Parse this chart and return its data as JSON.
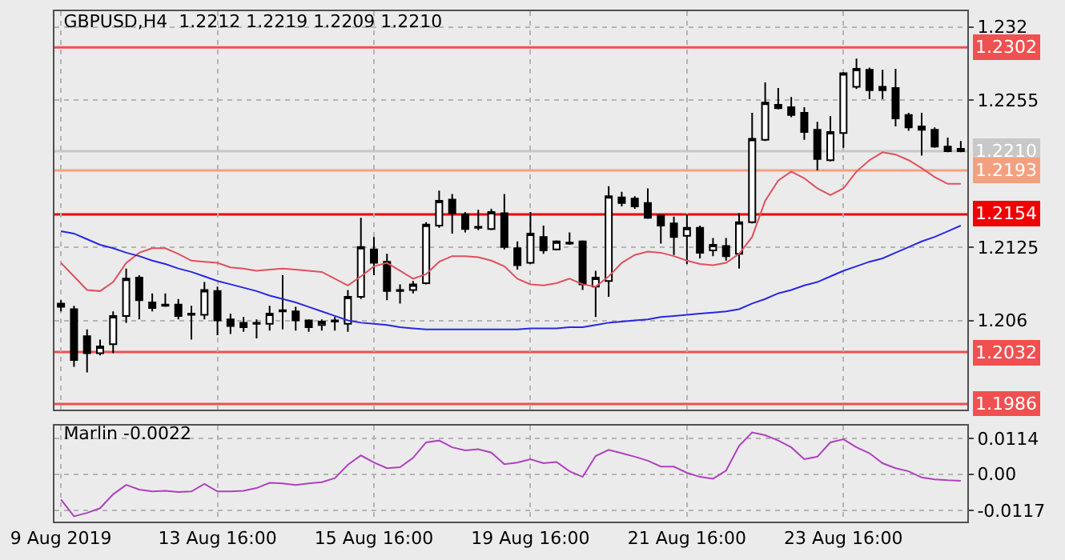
{
  "chart_data": [
    {
      "type": "candlestick",
      "title": "GBPUSD,H4  1.2212 1.2219 1.2209 1.2210",
      "categories": [
        null,
        null,
        null,
        null,
        null,
        null,
        null,
        null,
        null,
        null,
        null,
        null,
        null,
        null,
        null,
        null,
        null,
        null,
        null,
        null,
        null,
        null,
        null,
        null,
        null,
        null,
        null,
        null,
        null,
        null,
        null,
        null,
        null,
        null,
        null,
        null,
        null,
        null,
        null,
        null,
        null,
        null,
        null,
        null,
        null,
        null,
        null,
        null,
        null,
        null,
        null,
        null,
        null,
        null,
        null,
        null,
        null,
        null,
        null,
        null,
        null,
        null,
        null,
        null,
        null,
        null,
        null,
        null,
        null,
        null
      ],
      "ohlc": [
        [
          1.2075,
          1.2078,
          1.2068,
          1.2072
        ],
        [
          1.207,
          1.2073,
          1.2019,
          1.2025
        ],
        [
          1.2046,
          1.2052,
          1.2014,
          1.2031
        ],
        [
          1.2031,
          1.2043,
          1.2029,
          1.2037
        ],
        [
          1.2039,
          1.2068,
          1.2031,
          1.2064
        ],
        [
          1.2064,
          1.2106,
          1.2058,
          1.2097
        ],
        [
          1.2098,
          1.21,
          1.2061,
          1.2078
        ],
        [
          1.2076,
          1.2084,
          1.2068,
          1.2071
        ],
        [
          1.2074,
          1.2084,
          1.2072,
          1.2073
        ],
        [
          1.2074,
          1.2079,
          1.2061,
          1.2064
        ],
        [
          1.2065,
          1.2073,
          1.2043,
          1.2066
        ],
        [
          1.2065,
          1.2094,
          1.2061,
          1.2087
        ],
        [
          1.2086,
          1.209,
          1.2047,
          1.206
        ],
        [
          1.2061,
          1.2066,
          1.2048,
          1.2055
        ],
        [
          1.2058,
          1.2063,
          1.205,
          1.2054
        ],
        [
          1.2057,
          1.2061,
          1.2044,
          1.2058
        ],
        [
          1.2057,
          1.2073,
          1.2051,
          1.2066
        ],
        [
          1.2068,
          1.21,
          1.2052,
          1.2069
        ],
        [
          1.2068,
          1.2072,
          1.2051,
          1.206
        ],
        [
          1.206,
          1.2061,
          1.205,
          1.2054
        ],
        [
          1.2056,
          1.2061,
          1.2051,
          1.2059
        ],
        [
          1.2059,
          1.2063,
          1.2051,
          1.206
        ],
        [
          1.2057,
          1.2087,
          1.205,
          1.2081
        ],
        [
          1.2081,
          1.2151,
          1.2079,
          1.2125
        ],
        [
          1.2123,
          1.2134,
          1.21,
          1.2111
        ],
        [
          1.2112,
          1.2119,
          1.2078,
          1.2086
        ],
        [
          1.2086,
          1.2092,
          1.2075,
          1.2087
        ],
        [
          1.2087,
          1.2095,
          1.2084,
          1.2092
        ],
        [
          1.2093,
          1.2147,
          1.2092,
          1.2145
        ],
        [
          1.2144,
          1.2175,
          1.2142,
          1.2166
        ],
        [
          1.2167,
          1.2172,
          1.2137,
          1.2155
        ],
        [
          1.2154,
          1.2156,
          1.2138,
          1.2141
        ],
        [
          1.2142,
          1.2158,
          1.214,
          1.2143
        ],
        [
          1.2141,
          1.2159,
          1.214,
          1.2156
        ],
        [
          1.2155,
          1.2172,
          1.2123,
          1.2125
        ],
        [
          1.2124,
          1.213,
          1.2105,
          1.2109
        ],
        [
          1.2111,
          1.2156,
          1.211,
          1.2137
        ],
        [
          1.2134,
          1.2144,
          1.2119,
          1.2122
        ],
        [
          1.2123,
          1.2131,
          1.2122,
          1.213
        ],
        [
          1.2128,
          1.2138,
          1.2127,
          1.2129
        ],
        [
          1.213,
          1.2131,
          1.2087,
          1.2092
        ],
        [
          1.209,
          1.2104,
          1.2063,
          1.2098
        ],
        [
          1.2095,
          1.2179,
          1.2081,
          1.217
        ],
        [
          1.2169,
          1.2174,
          1.2161,
          1.2164
        ],
        [
          1.2168,
          1.217,
          1.2159,
          1.2161
        ],
        [
          1.2164,
          1.2177,
          1.215,
          1.2151
        ],
        [
          1.2153,
          1.2154,
          1.2128,
          1.2144
        ],
        [
          1.2146,
          1.2152,
          1.2118,
          1.2134
        ],
        [
          1.2135,
          1.2154,
          1.211,
          1.2142
        ],
        [
          1.2142,
          1.2144,
          1.2115,
          1.212
        ],
        [
          1.2122,
          1.2133,
          1.2117,
          1.2127
        ],
        [
          1.2126,
          1.2133,
          1.2113,
          1.2117
        ],
        [
          1.2119,
          1.2155,
          1.2106,
          1.2147
        ],
        [
          1.2147,
          1.2244,
          1.2146,
          1.2221
        ],
        [
          1.222,
          1.2271,
          1.2219,
          1.2253
        ],
        [
          1.2251,
          1.2266,
          1.2247,
          1.2248
        ],
        [
          1.2249,
          1.2258,
          1.224,
          1.2242
        ],
        [
          1.2244,
          1.2249,
          1.222,
          1.2227
        ],
        [
          1.2229,
          1.2236,
          1.2193,
          1.2203
        ],
        [
          1.2202,
          1.2241,
          1.2201,
          1.2227
        ],
        [
          1.2226,
          1.228,
          1.2213,
          1.2279
        ],
        [
          1.2267,
          1.2292,
          1.2265,
          1.2283
        ],
        [
          1.2282,
          1.2284,
          1.2256,
          1.2264
        ],
        [
          1.2267,
          1.2282,
          1.2256,
          1.2264
        ],
        [
          1.2266,
          1.2283,
          1.2232,
          1.2239
        ],
        [
          1.2242,
          1.2244,
          1.2228,
          1.2231
        ],
        [
          1.2232,
          1.2244,
          1.2206,
          1.2229
        ],
        [
          1.2229,
          1.2231,
          1.2213,
          1.2214
        ],
        [
          1.2214,
          1.2222,
          1.2209,
          1.221
        ],
        [
          1.2212,
          1.2219,
          1.2209,
          1.221
        ]
      ],
      "series": [
        {
          "type": "line",
          "color": "#e0505e",
          "values": [
            1.2111,
            1.2099,
            1.2087,
            1.2086,
            1.2094,
            1.2111,
            1.212,
            1.2124,
            1.2124,
            1.2119,
            1.2113,
            1.2112,
            1.2111,
            1.2107,
            1.2106,
            1.2104,
            1.2105,
            1.2106,
            1.2105,
            1.2104,
            1.2103,
            1.2097,
            1.2091,
            1.2099,
            1.2108,
            1.2111,
            1.2104,
            1.2097,
            1.2101,
            1.2112,
            1.2117,
            1.2117,
            1.2116,
            1.2113,
            1.2108,
            1.2097,
            1.2092,
            1.2091,
            1.2093,
            1.2097,
            1.2092,
            1.209,
            1.2099,
            1.2111,
            1.2118,
            1.2121,
            1.212,
            1.2117,
            1.2113,
            1.211,
            1.2109,
            1.2111,
            1.2119,
            1.2134,
            1.2166,
            1.2184,
            1.2192,
            1.2186,
            1.2177,
            1.2171,
            1.2177,
            1.2192,
            1.2202,
            1.2209,
            1.2207,
            1.2202,
            1.2195,
            1.2187,
            1.2181,
            1.2181
          ]
        },
        {
          "type": "line",
          "color": "#2828e0",
          "values": [
            1.2139,
            1.2137,
            1.2132,
            1.2127,
            1.2124,
            1.212,
            1.2117,
            1.2113,
            1.211,
            1.2106,
            1.2103,
            1.2099,
            1.2095,
            1.2092,
            1.2089,
            1.2086,
            1.2082,
            1.2079,
            1.2076,
            1.2072,
            1.2068,
            1.2064,
            1.206,
            1.2058,
            1.2057,
            1.2056,
            1.2054,
            1.2053,
            1.2052,
            1.2052,
            1.2052,
            1.2052,
            1.2052,
            1.2052,
            1.2052,
            1.2052,
            1.2053,
            1.2053,
            1.2053,
            1.2054,
            1.2054,
            1.2056,
            1.2058,
            1.2059,
            1.206,
            1.2061,
            1.2063,
            1.2064,
            1.2065,
            1.2066,
            1.2067,
            1.2068,
            1.207,
            1.2075,
            1.2079,
            1.2084,
            1.2087,
            1.2091,
            1.2094,
            1.2099,
            1.2104,
            1.2108,
            1.2112,
            1.2115,
            1.212,
            1.2125,
            1.213,
            1.2134,
            1.2139,
            1.2144
          ]
        }
      ],
      "ylim": [
        1.1981,
        1.2334
      ],
      "yticks": [
        1.232,
        1.2255,
        1.2125,
        1.206
      ],
      "ref_lines": [
        {
          "axis": "y",
          "value": 1.2302,
          "label": "1.2302",
          "color": "#f05050"
        },
        {
          "axis": "y",
          "value": 1.221,
          "label": "1.2210",
          "color": "#c8c8c8"
        },
        {
          "axis": "y",
          "value": 1.2193,
          "label": "1.2193",
          "color": "#f4a080"
        },
        {
          "axis": "y",
          "value": 1.2154,
          "label": "1.2154",
          "color": "#f00000"
        },
        {
          "axis": "y",
          "value": 1.2032,
          "label": "1.2032",
          "color": "#f05050"
        },
        {
          "axis": "y",
          "value": 1.1986,
          "label": "1.1986",
          "color": "#f05050"
        }
      ],
      "grid": true,
      "tick_labels": "y"
    },
    {
      "type": "line",
      "title": "Marlin -0.0022",
      "categories": [
        "9 Aug 2019",
        null,
        null,
        null,
        null,
        null,
        null,
        null,
        null,
        null,
        null,
        null,
        "13 Aug 16:00",
        null,
        null,
        null,
        null,
        null,
        null,
        null,
        null,
        null,
        null,
        null,
        "15 Aug 16:00",
        null,
        null,
        null,
        null,
        null,
        null,
        null,
        null,
        null,
        null,
        null,
        "19 Aug 16:00",
        null,
        null,
        null,
        null,
        null,
        null,
        null,
        null,
        null,
        null,
        null,
        "21 Aug 16:00",
        null,
        null,
        null,
        null,
        null,
        null,
        null,
        null,
        null,
        null,
        null,
        "23 Aug 16:00",
        null,
        null,
        null,
        null,
        null,
        null,
        null,
        null,
        null
      ],
      "series": [
        {
          "color": "#b040c0",
          "values": [
            -0.0082,
            -0.0136,
            -0.0125,
            -0.011,
            -0.0065,
            -0.0035,
            -0.005,
            -0.0056,
            -0.0054,
            -0.0058,
            -0.0056,
            -0.0032,
            -0.0056,
            -0.0056,
            -0.0054,
            -0.0045,
            -0.0028,
            -0.003,
            -0.0035,
            -0.003,
            -0.0026,
            -0.0013,
            0.003,
            0.006,
            0.0037,
            0.0019,
            0.0022,
            0.0052,
            0.0102,
            0.0108,
            0.0086,
            0.0076,
            0.008,
            0.0069,
            0.0032,
            0.0037,
            0.0048,
            0.0035,
            0.0039,
            0.0009,
            -0.0009,
            0.0058,
            0.0078,
            0.0067,
            0.0056,
            0.0043,
            0.0024,
            0.0024,
            0.0004,
            -0.0009,
            -0.0015,
            0.0011,
            0.0091,
            0.0134,
            0.0125,
            0.0108,
            0.0086,
            0.0048,
            0.0056,
            0.0102,
            0.0112,
            0.0086,
            0.0067,
            0.0035,
            0.0019,
            0.0009,
            -0.0011,
            -0.0017,
            -0.002,
            -0.0022
          ]
        }
      ],
      "ylim": [
        -0.0153,
        0.0156
      ],
      "yticks": [
        0.0114,
        {
          "value": 0,
          "label": "0.00"
        },
        -0.0117
      ],
      "grid": true
    }
  ]
}
